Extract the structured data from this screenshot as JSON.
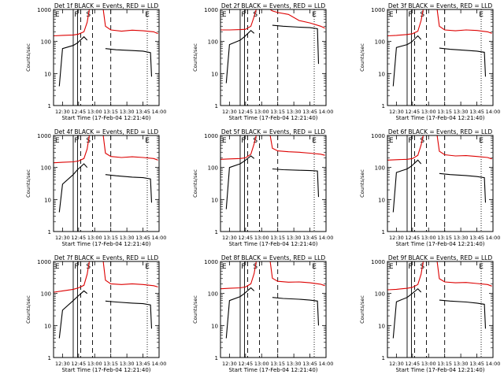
{
  "figure": {
    "xlabel": "Start Time (17-Feb-04 12:21:40)",
    "ylabel": "Counts/sec",
    "x_ticks": [
      "12:30",
      "12:45",
      "13:00",
      "13:15",
      "13:30",
      "13:45",
      "14:00"
    ],
    "y_ticks": [
      "1",
      "10",
      "100",
      "1000"
    ],
    "colors": {
      "events": "#000000",
      "lld": "#dd0000"
    }
  },
  "chart_data": [
    {
      "type": "line",
      "title": "Det 1f BLACK = Events, RED = LLD",
      "xlabel": "Start Time (17-Feb-04 12:21:40)",
      "ylabel": "Counts/sec",
      "x_range": [
        "12:21:40",
        "14:00"
      ],
      "ylim": [
        1,
        1000
      ],
      "y_scale": "log",
      "series": [
        {
          "name": "LLD",
          "color": "#dd0000",
          "x": [
            "12:22",
            "12:30",
            "12:40",
            "12:45",
            "12:50",
            "12:53",
            "12:55",
            "13:08",
            "13:10",
            "13:15",
            "13:25",
            "13:35",
            "13:45",
            "13:55",
            "13:59"
          ],
          "values": [
            150,
            155,
            160,
            170,
            200,
            400,
            1000,
            1000,
            300,
            230,
            210,
            225,
            215,
            200,
            175
          ]
        },
        {
          "name": "Events",
          "color": "#000000",
          "x": [
            "12:27",
            "12:30",
            "12:40",
            "12:44",
            "12:50",
            "12:53",
            "12:55",
            "13:09",
            "13:10",
            "13:20",
            "13:35",
            "13:45",
            "13:52",
            "13:53"
          ],
          "values": [
            4,
            60,
            75,
            90,
            140,
            110,
            null,
            null,
            60,
            55,
            52,
            50,
            45,
            8
          ]
        }
      ],
      "annotations": [
        "E",
        "F",
        "S",
        "E"
      ]
    },
    {
      "type": "line",
      "title": "Det 2f BLACK = Events, RED = LLD",
      "xlabel": "Start Time (17-Feb-04 12:21:40)",
      "ylabel": "Counts/sec",
      "x_range": [
        "12:21:40",
        "14:00"
      ],
      "ylim": [
        1,
        1000
      ],
      "y_scale": "log",
      "series": [
        {
          "name": "LLD",
          "color": "#dd0000",
          "x": [
            "12:22",
            "12:30",
            "12:40",
            "12:45",
            "12:50",
            "12:53",
            "12:55",
            "13:08",
            "13:10",
            "13:15",
            "13:25",
            "13:35",
            "13:45",
            "13:55",
            "13:59"
          ],
          "values": [
            230,
            230,
            235,
            240,
            300,
            600,
            1000,
            1000,
            900,
            800,
            700,
            450,
            380,
            300,
            260
          ]
        },
        {
          "name": "Events",
          "color": "#000000",
          "x": [
            "12:27",
            "12:30",
            "12:40",
            "12:44",
            "12:50",
            "12:53",
            "12:55",
            "13:09",
            "13:10",
            "13:20",
            "13:35",
            "13:45",
            "13:52",
            "13:53"
          ],
          "values": [
            5,
            80,
            110,
            140,
            220,
            180,
            null,
            null,
            320,
            300,
            280,
            270,
            250,
            20
          ]
        }
      ],
      "annotations": [
        "E",
        "F",
        "S",
        "E"
      ]
    },
    {
      "type": "line",
      "title": "Det 3f BLACK = Events, RED = LLD",
      "xlabel": "Start Time (17-Feb-04 12:21:40)",
      "ylabel": "Counts/sec",
      "x_range": [
        "12:21:40",
        "14:00"
      ],
      "ylim": [
        1,
        1000
      ],
      "y_scale": "log",
      "series": [
        {
          "name": "LLD",
          "color": "#dd0000",
          "x": [
            "12:22",
            "12:30",
            "12:40",
            "12:45",
            "12:50",
            "12:53",
            "12:55",
            "13:08",
            "13:10",
            "13:15",
            "13:25",
            "13:35",
            "13:45",
            "13:55",
            "13:59"
          ],
          "values": [
            150,
            155,
            165,
            175,
            210,
            450,
            1000,
            1000,
            300,
            230,
            215,
            230,
            220,
            200,
            180
          ]
        },
        {
          "name": "Events",
          "color": "#000000",
          "x": [
            "12:27",
            "12:30",
            "12:40",
            "12:44",
            "12:50",
            "12:53",
            "12:55",
            "13:09",
            "13:10",
            "13:20",
            "13:35",
            "13:45",
            "13:52",
            "13:53"
          ],
          "values": [
            4,
            65,
            80,
            95,
            150,
            115,
            null,
            null,
            62,
            57,
            53,
            50,
            46,
            8
          ]
        }
      ],
      "annotations": [
        "E",
        "F",
        "S",
        "E"
      ]
    },
    {
      "type": "line",
      "title": "Det 4f BLACK = Events, RED = LLD",
      "xlabel": "Start Time (17-Feb-04 12:21:40)",
      "ylabel": "Counts/sec",
      "x_range": [
        "12:21:40",
        "14:00"
      ],
      "ylim": [
        1,
        1000
      ],
      "y_scale": "log",
      "series": [
        {
          "name": "LLD",
          "color": "#dd0000",
          "x": [
            "12:22",
            "12:30",
            "12:40",
            "12:45",
            "12:50",
            "12:53",
            "12:55",
            "13:08",
            "13:10",
            "13:15",
            "13:25",
            "13:35",
            "13:45",
            "13:55",
            "13:59"
          ],
          "values": [
            140,
            145,
            150,
            160,
            190,
            380,
            1000,
            1000,
            280,
            220,
            205,
            215,
            205,
            190,
            170
          ]
        },
        {
          "name": "Events",
          "color": "#000000",
          "x": [
            "12:27",
            "12:30",
            "12:40",
            "12:44",
            "12:50",
            "12:53",
            "12:55",
            "13:09",
            "13:10",
            "13:20",
            "13:35",
            "13:45",
            "13:52",
            "13:53"
          ],
          "values": [
            4,
            30,
            60,
            85,
            130,
            100,
            null,
            null,
            60,
            55,
            50,
            48,
            44,
            8
          ]
        }
      ],
      "annotations": [
        "E",
        "F",
        "S",
        "E"
      ]
    },
    {
      "type": "line",
      "title": "Det 5f BLACK = Events, RED = LLD",
      "xlabel": "Start Time (17-Feb-04 12:21:40)",
      "ylabel": "Counts/sec",
      "x_range": [
        "12:21:40",
        "14:00"
      ],
      "ylim": [
        1,
        1000
      ],
      "y_scale": "log",
      "series": [
        {
          "name": "LLD",
          "color": "#dd0000",
          "x": [
            "12:22",
            "12:30",
            "12:40",
            "12:45",
            "12:50",
            "12:53",
            "12:55",
            "13:08",
            "13:10",
            "13:15",
            "13:25",
            "13:35",
            "13:45",
            "13:55",
            "13:59"
          ],
          "values": [
            180,
            185,
            190,
            200,
            260,
            550,
            1000,
            1000,
            400,
            330,
            310,
            300,
            280,
            260,
            240
          ]
        },
        {
          "name": "Events",
          "color": "#000000",
          "x": [
            "12:27",
            "12:30",
            "12:40",
            "12:44",
            "12:50",
            "12:53",
            "12:55",
            "13:09",
            "13:10",
            "13:20",
            "13:35",
            "13:45",
            "13:52",
            "13:53"
          ],
          "values": [
            5,
            100,
            130,
            160,
            230,
            190,
            null,
            null,
            90,
            85,
            82,
            80,
            78,
            12
          ]
        }
      ],
      "annotations": [
        "E",
        "F",
        "S",
        "E"
      ]
    },
    {
      "type": "line",
      "title": "Det 6f BLACK = Events, RED = LLD",
      "xlabel": "Start Time (17-Feb-04 12:21:40)",
      "ylabel": "Counts/sec",
      "x_range": [
        "12:21:40",
        "14:00"
      ],
      "ylim": [
        1,
        1000
      ],
      "y_scale": "log",
      "series": [
        {
          "name": "LLD",
          "color": "#dd0000",
          "x": [
            "12:22",
            "12:30",
            "12:40",
            "12:45",
            "12:50",
            "12:53",
            "12:55",
            "13:08",
            "13:10",
            "13:15",
            "13:25",
            "13:35",
            "13:45",
            "13:55",
            "13:59"
          ],
          "values": [
            170,
            175,
            180,
            190,
            240,
            500,
            1000,
            1000,
            320,
            250,
            230,
            235,
            220,
            205,
            185
          ]
        },
        {
          "name": "Events",
          "color": "#000000",
          "x": [
            "12:27",
            "12:30",
            "12:40",
            "12:44",
            "12:50",
            "12:53",
            "12:55",
            "13:09",
            "13:10",
            "13:20",
            "13:35",
            "13:45",
            "13:52",
            "13:53"
          ],
          "values": [
            4,
            70,
            90,
            110,
            170,
            130,
            null,
            null,
            65,
            60,
            56,
            52,
            48,
            8
          ]
        }
      ],
      "annotations": [
        "E",
        "F",
        "S",
        "E"
      ]
    },
    {
      "type": "line",
      "title": "Det 7f BLACK = Events, RED = LLD",
      "xlabel": "Start Time (17-Feb-04 12:21:40)",
      "ylabel": "Counts/sec",
      "x_range": [
        "12:21:40",
        "14:00"
      ],
      "ylim": [
        1,
        1000
      ],
      "y_scale": "log",
      "series": [
        {
          "name": "LLD",
          "color": "#dd0000",
          "x": [
            "12:22",
            "12:30",
            "12:40",
            "12:45",
            "12:50",
            "12:53",
            "12:55",
            "13:08",
            "13:10",
            "13:15",
            "13:25",
            "13:35",
            "13:45",
            "13:55",
            "13:59"
          ],
          "values": [
            110,
            120,
            135,
            150,
            180,
            400,
            1000,
            1000,
            260,
            200,
            190,
            200,
            190,
            175,
            160
          ]
        },
        {
          "name": "Events",
          "color": "#000000",
          "x": [
            "12:27",
            "12:30",
            "12:40",
            "12:44",
            "12:50",
            "12:53",
            "12:55",
            "13:09",
            "13:10",
            "13:20",
            "13:35",
            "13:45",
            "13:52",
            "13:53"
          ],
          "values": [
            4,
            30,
            60,
            80,
            120,
            100,
            null,
            null,
            58,
            54,
            50,
            48,
            44,
            8
          ]
        }
      ],
      "annotations": [
        "E",
        "F",
        "S",
        "E"
      ]
    },
    {
      "type": "line",
      "title": "Det 8f BLACK = Events, RED = LLD",
      "xlabel": "Start Time (17-Feb-04 12:21:40)",
      "ylabel": "Counts/sec",
      "x_range": [
        "12:21:40",
        "14:00"
      ],
      "ylim": [
        1,
        1000
      ],
      "y_scale": "log",
      "series": [
        {
          "name": "LLD",
          "color": "#dd0000",
          "x": [
            "12:22",
            "12:30",
            "12:40",
            "12:45",
            "12:50",
            "12:53",
            "12:55",
            "13:08",
            "13:10",
            "13:15",
            "13:25",
            "13:35",
            "13:45",
            "13:55",
            "13:59"
          ],
          "values": [
            140,
            145,
            150,
            160,
            200,
            420,
            1000,
            1000,
            300,
            240,
            225,
            230,
            215,
            195,
            175
          ]
        },
        {
          "name": "Events",
          "color": "#000000",
          "x": [
            "12:27",
            "12:30",
            "12:40",
            "12:44",
            "12:50",
            "12:53",
            "12:55",
            "13:09",
            "13:10",
            "13:20",
            "13:35",
            "13:45",
            "13:52",
            "13:53"
          ],
          "values": [
            4,
            60,
            80,
            100,
            150,
            120,
            null,
            null,
            75,
            70,
            66,
            62,
            58,
            10
          ]
        }
      ],
      "annotations": [
        "E",
        "F",
        "S",
        "E"
      ]
    },
    {
      "type": "line",
      "title": "Det 9f BLACK = Events, RED = LLD",
      "xlabel": "Start Time (17-Feb-04 12:21:40)",
      "ylabel": "Counts/sec",
      "x_range": [
        "12:21:40",
        "14:00"
      ],
      "ylim": [
        1,
        1000
      ],
      "y_scale": "log",
      "series": [
        {
          "name": "LLD",
          "color": "#dd0000",
          "x": [
            "12:22",
            "12:30",
            "12:40",
            "12:45",
            "12:50",
            "12:53",
            "12:55",
            "13:08",
            "13:10",
            "13:15",
            "13:25",
            "13:35",
            "13:45",
            "13:55",
            "13:59"
          ],
          "values": [
            130,
            135,
            145,
            155,
            190,
            400,
            1000,
            1000,
            290,
            230,
            215,
            220,
            205,
            190,
            170
          ]
        },
        {
          "name": "Events",
          "color": "#000000",
          "x": [
            "12:27",
            "12:30",
            "12:40",
            "12:44",
            "12:50",
            "12:53",
            "12:55",
            "13:09",
            "13:10",
            "13:20",
            "13:35",
            "13:45",
            "13:52",
            "13:53"
          ],
          "values": [
            4,
            55,
            75,
            95,
            140,
            110,
            null,
            null,
            62,
            58,
            54,
            50,
            46,
            8
          ]
        }
      ],
      "annotations": [
        "E",
        "F",
        "S",
        "E"
      ]
    }
  ]
}
